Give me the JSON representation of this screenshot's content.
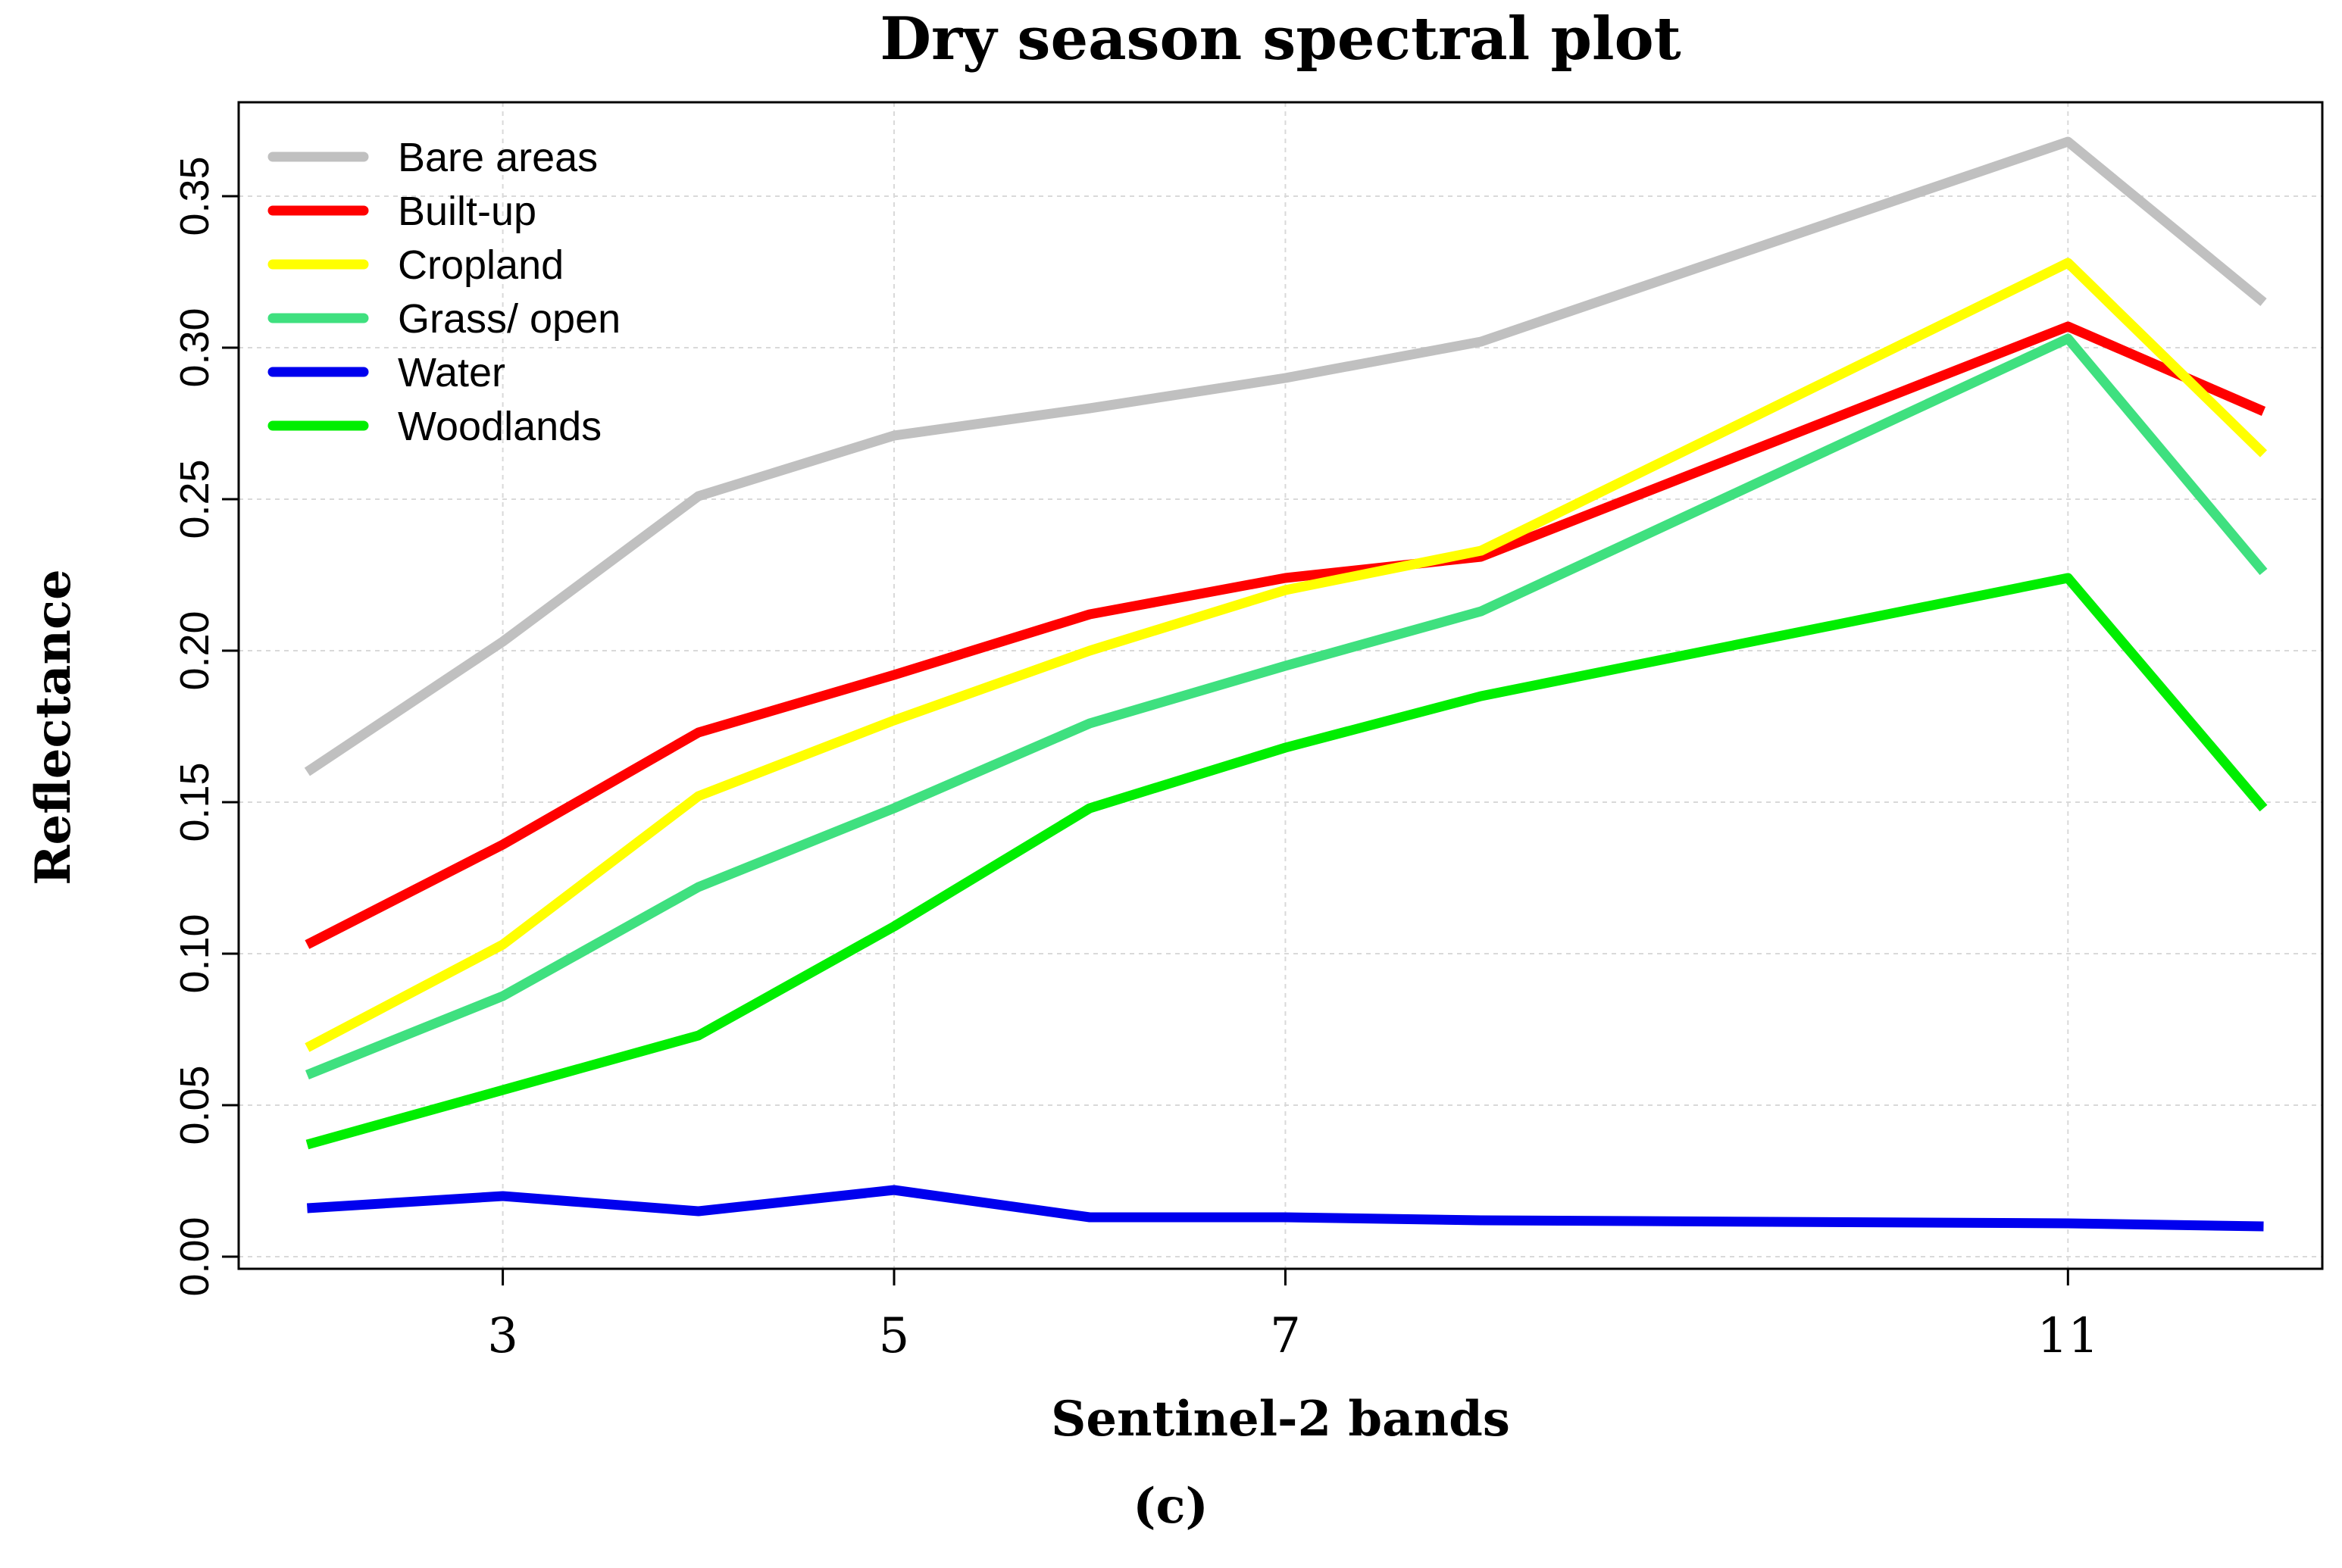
{
  "chart_data": {
    "type": "line",
    "title": "Dry season spectral plot",
    "xlabel": "Sentinel-2 bands",
    "ylabel": "Reflectance",
    "caption": "(c)",
    "x": [
      2,
      3,
      4,
      5,
      6,
      7,
      8,
      11,
      12
    ],
    "xlim": [
      1.65,
      12.3
    ],
    "ylim": [
      -0.004,
      0.381
    ],
    "x_ticks": [
      3,
      5,
      7,
      11
    ],
    "x_tick_labels": [
      "3",
      "5",
      "7",
      "11"
    ],
    "y_ticks": [
      0.0,
      0.05,
      0.1,
      0.15,
      0.2,
      0.25,
      0.3,
      0.35
    ],
    "y_tick_labels": [
      "0.00",
      "0.05",
      "0.10",
      "0.15",
      "0.20",
      "0.25",
      "0.30",
      "0.35"
    ],
    "grid": true,
    "legend_position": "top-left",
    "series": [
      {
        "name": "Bare areas",
        "color": "#c0c0c0",
        "values": [
          0.16,
          0.203,
          0.251,
          0.271,
          0.28,
          0.29,
          0.302,
          0.368,
          0.315
        ]
      },
      {
        "name": "Built-up",
        "color": "#ff0000",
        "values": [
          0.103,
          0.136,
          0.173,
          0.192,
          0.212,
          0.224,
          0.231,
          0.307,
          0.279
        ]
      },
      {
        "name": "Cropland",
        "color": "#ffff00",
        "values": [
          0.069,
          0.103,
          0.152,
          0.177,
          0.2,
          0.22,
          0.233,
          0.328,
          0.265
        ]
      },
      {
        "name": "Grass/ open",
        "color": "#3fe07f",
        "values": [
          0.06,
          0.086,
          0.122,
          0.148,
          0.176,
          0.195,
          0.213,
          0.303,
          0.226
        ]
      },
      {
        "name": "Water",
        "color": "#0000ee",
        "values": [
          0.016,
          0.02,
          0.015,
          0.022,
          0.013,
          0.013,
          0.012,
          0.011,
          0.01
        ]
      },
      {
        "name": "Woodlands",
        "color": "#00ee00",
        "values": [
          0.037,
          0.055,
          0.073,
          0.109,
          0.148,
          0.168,
          0.185,
          0.224,
          0.148
        ]
      }
    ]
  }
}
